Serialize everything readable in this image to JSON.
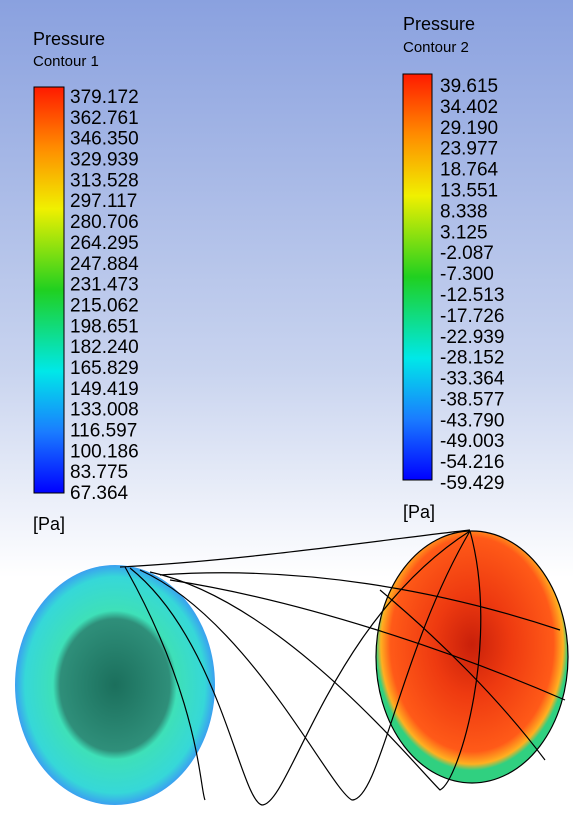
{
  "legends": [
    {
      "title": "Pressure",
      "subtitle": "Contour 1",
      "unit": "[Pa]",
      "labels": [
        "379.172",
        "362.761",
        "346.350",
        "329.939",
        "313.528",
        "297.117",
        "280.706",
        "264.295",
        "247.884",
        "231.473",
        "215.062",
        "198.651",
        "182.240",
        "165.829",
        "149.419",
        "133.008",
        "116.597",
        "100.186",
        "83.775",
        "67.364"
      ]
    },
    {
      "title": "Pressure",
      "subtitle": "Contour 2",
      "unit": "[Pa]",
      "labels": [
        "39.615",
        "34.402",
        "29.190",
        "23.977",
        "18.764",
        "13.551",
        "8.338",
        "3.125",
        "-2.087",
        "-7.300",
        "-12.513",
        "-17.726",
        "-22.939",
        "-28.152",
        "-33.364",
        "-38.577",
        "-43.790",
        "-49.003",
        "-54.216",
        "-59.429"
      ]
    }
  ]
}
